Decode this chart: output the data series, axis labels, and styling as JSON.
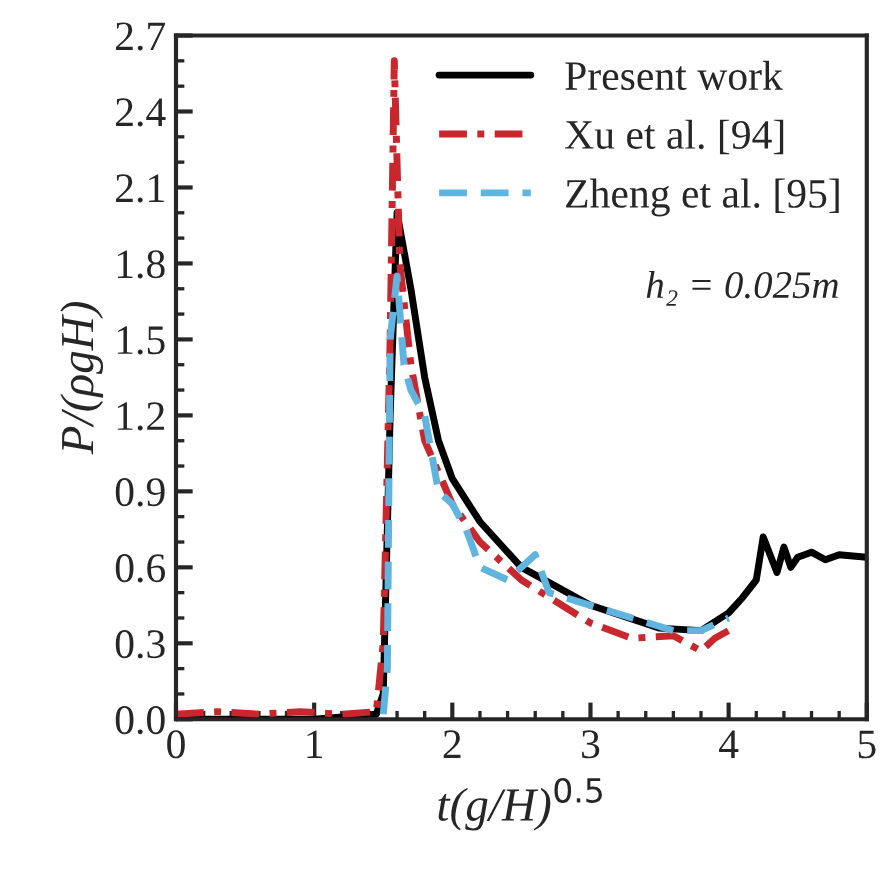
{
  "chart_data": {
    "type": "line",
    "xlabel": "t(g/H)$^{0.5}$",
    "ylabel": "P/(ρgH)",
    "xlim": [
      0,
      5
    ],
    "ylim": [
      0,
      2.7
    ],
    "xticks": [
      0,
      1,
      2,
      3,
      4,
      5
    ],
    "yticks": [
      {
        "value": 0,
        "label": "0.0"
      },
      {
        "value": 0.3,
        "label": "0.3"
      },
      {
        "value": 0.6,
        "label": "0.6"
      },
      {
        "value": 0.9,
        "label": "0.9"
      },
      {
        "value": 1.2,
        "label": "1.2"
      },
      {
        "value": 1.5,
        "label": "1.5"
      },
      {
        "value": 1.8,
        "label": "1.8"
      },
      {
        "value": 2.1,
        "label": "2.1"
      },
      {
        "value": 2.4,
        "label": "2.4"
      },
      {
        "value": 2.7,
        "label": "2.7"
      }
    ],
    "legend": "top right",
    "grid": false,
    "annotations": [
      "h₂ = 0.025m"
    ],
    "series": [
      {
        "name": "Present work",
        "color": "#000000",
        "line_style": "solid",
        "x": [
          0,
          0.5,
          1.0,
          1.45,
          1.5,
          1.55,
          1.6,
          1.65,
          1.7,
          1.8,
          1.9,
          2.0,
          2.2,
          2.5,
          3.0,
          3.5,
          3.8,
          4.0,
          4.1,
          4.2,
          4.25,
          4.3,
          4.35,
          4.4,
          4.45,
          4.5,
          4.6,
          4.7,
          4.8,
          5.0
        ],
        "values": [
          0,
          0,
          0,
          0.02,
          0.1,
          1.2,
          2.0,
          1.85,
          1.7,
          1.35,
          1.1,
          0.95,
          0.78,
          0.6,
          0.45,
          0.36,
          0.35,
          0.42,
          0.48,
          0.55,
          0.72,
          0.65,
          0.58,
          0.68,
          0.6,
          0.64,
          0.66,
          0.63,
          0.65,
          0.64
        ]
      },
      {
        "name": "Xu et al. [94]",
        "color": "#c8282d",
        "line_style": "dashdot",
        "x": [
          0,
          0.3,
          0.6,
          0.9,
          1.2,
          1.45,
          1.5,
          1.55,
          1.58,
          1.62,
          1.7,
          1.8,
          2.0,
          2.2,
          2.5,
          3.0,
          3.3,
          3.6,
          3.8,
          3.9,
          4.0
        ],
        "values": [
          0.02,
          0.03,
          0.02,
          0.03,
          0.02,
          0.03,
          0.3,
          1.5,
          2.6,
          1.8,
          1.4,
          1.1,
          0.85,
          0.7,
          0.55,
          0.38,
          0.32,
          0.33,
          0.27,
          0.32,
          0.35
        ]
      },
      {
        "name": "Zheng et al. [95]",
        "color": "#5fb4e0",
        "line_style": "dashed",
        "x": [
          1.5,
          1.53,
          1.55,
          1.6,
          1.65,
          1.7,
          1.8,
          1.9,
          2.0,
          2.1,
          2.2,
          2.4,
          2.6,
          2.7,
          3.0,
          3.3,
          3.6,
          3.8,
          4.0
        ],
        "values": [
          0.02,
          0.2,
          1.5,
          1.75,
          1.4,
          1.3,
          1.2,
          0.9,
          0.85,
          0.75,
          0.6,
          0.55,
          0.65,
          0.5,
          0.45,
          0.4,
          0.35,
          0.35,
          0.4
        ]
      }
    ]
  }
}
